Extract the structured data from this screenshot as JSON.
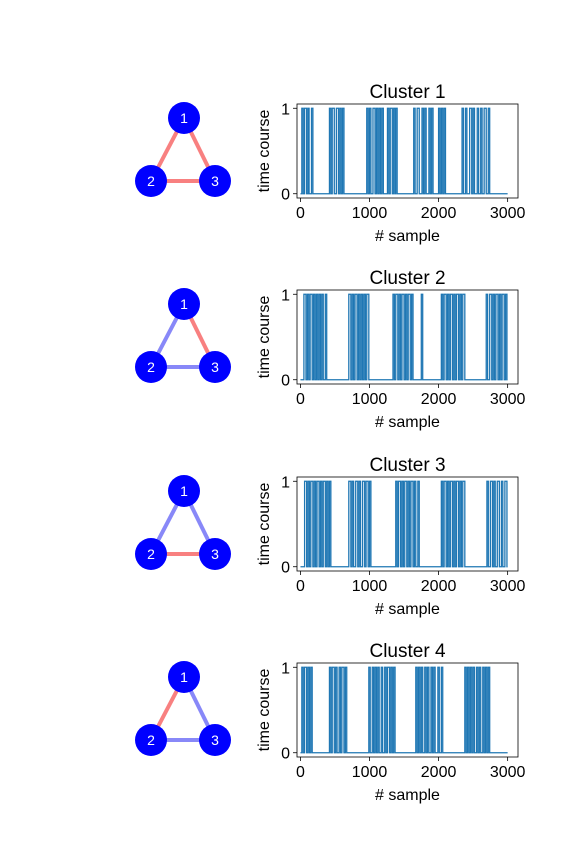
{
  "colors": {
    "node": "#0000ff",
    "node_label": "#ffffff",
    "edge_positive": "#f88080",
    "edge_negative": "#8888f8",
    "line": "#1f77b4",
    "axes": "#000000"
  },
  "chart_data": [
    {
      "type": "line",
      "title": "Cluster 1",
      "xlabel": "# sample",
      "ylabel": "time course",
      "xlim": [
        -50,
        3150
      ],
      "ylim": [
        -0.05,
        1.05
      ],
      "xticks": [
        0,
        1000,
        2000,
        3000
      ],
      "xtick_labels": [
        "0",
        "1000",
        "2000",
        "3000"
      ],
      "yticks": [
        0,
        1
      ],
      "ytick_labels": [
        "0",
        "1"
      ],
      "graph": {
        "nodes": [
          "1",
          "2",
          "3"
        ],
        "edges": [
          {
            "source": "1",
            "target": "2",
            "sign": "positive"
          },
          {
            "source": "1",
            "target": "3",
            "sign": "positive"
          },
          {
            "source": "2",
            "target": "3",
            "sign": "positive"
          }
        ]
      },
      "active_intervals": [
        [
          20,
          40
        ],
        [
          60,
          90
        ],
        [
          110,
          125
        ],
        [
          160,
          180
        ],
        [
          420,
          440
        ],
        [
          460,
          490
        ],
        [
          520,
          550
        ],
        [
          570,
          590
        ],
        [
          610,
          630
        ],
        [
          960,
          980
        ],
        [
          1000,
          1020
        ],
        [
          1050,
          1080
        ],
        [
          1100,
          1120
        ],
        [
          1140,
          1160
        ],
        [
          1180,
          1200
        ],
        [
          1260,
          1280
        ],
        [
          1300,
          1330
        ],
        [
          1350,
          1370
        ],
        [
          1380,
          1400
        ],
        [
          1640,
          1660
        ],
        [
          1690,
          1720
        ],
        [
          1760,
          1780
        ],
        [
          1800,
          1820
        ],
        [
          1860,
          1880
        ],
        [
          1900,
          1920
        ],
        [
          2000,
          2020
        ],
        [
          2040,
          2060
        ],
        [
          2080,
          2100
        ],
        [
          2340,
          2360
        ],
        [
          2390,
          2410
        ],
        [
          2450,
          2480
        ],
        [
          2500,
          2520
        ],
        [
          2560,
          2580
        ],
        [
          2610,
          2630
        ],
        [
          2660,
          2690
        ],
        [
          2720,
          2740
        ]
      ]
    },
    {
      "type": "line",
      "title": "Cluster 2",
      "xlabel": "# sample",
      "ylabel": "time course",
      "xlim": [
        -50,
        3150
      ],
      "ylim": [
        -0.05,
        1.05
      ],
      "xticks": [
        0,
        1000,
        2000,
        3000
      ],
      "xtick_labels": [
        "0",
        "1000",
        "2000",
        "3000"
      ],
      "yticks": [
        0,
        1
      ],
      "ytick_labels": [
        "0",
        "1"
      ],
      "graph": {
        "nodes": [
          "1",
          "2",
          "3"
        ],
        "edges": [
          {
            "source": "1",
            "target": "2",
            "sign": "negative"
          },
          {
            "source": "1",
            "target": "3",
            "sign": "positive"
          },
          {
            "source": "2",
            "target": "3",
            "sign": "negative"
          }
        ]
      },
      "active_intervals": [
        [
          50,
          80
        ],
        [
          100,
          120
        ],
        [
          140,
          170
        ],
        [
          190,
          210
        ],
        [
          230,
          250
        ],
        [
          270,
          290
        ],
        [
          310,
          330
        ],
        [
          360,
          380
        ],
        [
          700,
          730
        ],
        [
          750,
          770
        ],
        [
          790,
          820
        ],
        [
          840,
          860
        ],
        [
          880,
          900
        ],
        [
          920,
          940
        ],
        [
          960,
          990
        ],
        [
          1340,
          1360
        ],
        [
          1380,
          1410
        ],
        [
          1430,
          1450
        ],
        [
          1470,
          1500
        ],
        [
          1520,
          1540
        ],
        [
          1560,
          1590
        ],
        [
          1610,
          1630
        ],
        [
          1750,
          1770
        ],
        [
          2040,
          2060
        ],
        [
          2080,
          2110
        ],
        [
          2130,
          2150
        ],
        [
          2170,
          2200
        ],
        [
          2220,
          2240
        ],
        [
          2260,
          2290
        ],
        [
          2310,
          2330
        ],
        [
          2350,
          2380
        ],
        [
          2690,
          2710
        ],
        [
          2740,
          2770
        ],
        [
          2790,
          2810
        ],
        [
          2830,
          2860
        ],
        [
          2880,
          2900
        ],
        [
          2920,
          2950
        ],
        [
          2970,
          2990
        ]
      ]
    },
    {
      "type": "line",
      "title": "Cluster 3",
      "xlabel": "# sample",
      "ylabel": "time course",
      "xlim": [
        -50,
        3150
      ],
      "ylim": [
        -0.05,
        1.05
      ],
      "xticks": [
        0,
        1000,
        2000,
        3000
      ],
      "xtick_labels": [
        "0",
        "1000",
        "2000",
        "3000"
      ],
      "yticks": [
        0,
        1
      ],
      "ytick_labels": [
        "0",
        "1"
      ],
      "graph": {
        "nodes": [
          "1",
          "2",
          "3"
        ],
        "edges": [
          {
            "source": "1",
            "target": "2",
            "sign": "negative"
          },
          {
            "source": "1",
            "target": "3",
            "sign": "negative"
          },
          {
            "source": "2",
            "target": "3",
            "sign": "positive"
          }
        ]
      },
      "active_intervals": [
        [
          60,
          90
        ],
        [
          110,
          130
        ],
        [
          150,
          180
        ],
        [
          200,
          220
        ],
        [
          240,
          270
        ],
        [
          290,
          310
        ],
        [
          330,
          360
        ],
        [
          380,
          400
        ],
        [
          420,
          440
        ],
        [
          700,
          730
        ],
        [
          750,
          770
        ],
        [
          800,
          830
        ],
        [
          850,
          870
        ],
        [
          900,
          930
        ],
        [
          950,
          980
        ],
        [
          1000,
          1020
        ],
        [
          1380,
          1400
        ],
        [
          1420,
          1450
        ],
        [
          1470,
          1490
        ],
        [
          1510,
          1540
        ],
        [
          1560,
          1580
        ],
        [
          1600,
          1630
        ],
        [
          1650,
          1670
        ],
        [
          1700,
          1720
        ],
        [
          2040,
          2060
        ],
        [
          2080,
          2110
        ],
        [
          2130,
          2150
        ],
        [
          2170,
          2200
        ],
        [
          2220,
          2240
        ],
        [
          2260,
          2290
        ],
        [
          2310,
          2330
        ],
        [
          2350,
          2380
        ],
        [
          2700,
          2720
        ],
        [
          2750,
          2780
        ],
        [
          2800,
          2820
        ],
        [
          2850,
          2880
        ],
        [
          2910,
          2930
        ],
        [
          2960,
          2990
        ]
      ]
    },
    {
      "type": "line",
      "title": "Cluster 4",
      "xlabel": "# sample",
      "ylabel": "time course",
      "xlim": [
        -50,
        3150
      ],
      "ylim": [
        -0.05,
        1.05
      ],
      "xticks": [
        0,
        1000,
        2000,
        3000
      ],
      "xtick_labels": [
        "0",
        "1000",
        "2000",
        "3000"
      ],
      "yticks": [
        0,
        1
      ],
      "ytick_labels": [
        "0",
        "1"
      ],
      "graph": {
        "nodes": [
          "1",
          "2",
          "3"
        ],
        "edges": [
          {
            "source": "1",
            "target": "2",
            "sign": "positive"
          },
          {
            "source": "1",
            "target": "3",
            "sign": "negative"
          },
          {
            "source": "2",
            "target": "3",
            "sign": "negative"
          }
        ]
      },
      "active_intervals": [
        [
          20,
          40
        ],
        [
          60,
          90
        ],
        [
          110,
          130
        ],
        [
          150,
          170
        ],
        [
          420,
          440
        ],
        [
          460,
          490
        ],
        [
          510,
          530
        ],
        [
          560,
          580
        ],
        [
          600,
          630
        ],
        [
          650,
          670
        ],
        [
          990,
          1010
        ],
        [
          1040,
          1060
        ],
        [
          1080,
          1100
        ],
        [
          1120,
          1140
        ],
        [
          1170,
          1190
        ],
        [
          1220,
          1240
        ],
        [
          1260,
          1290
        ],
        [
          1310,
          1330
        ],
        [
          1350,
          1370
        ],
        [
          1670,
          1690
        ],
        [
          1710,
          1730
        ],
        [
          1750,
          1770
        ],
        [
          1800,
          1820
        ],
        [
          1840,
          1860
        ],
        [
          1890,
          1910
        ],
        [
          1930,
          1950
        ],
        [
          1990,
          2010
        ],
        [
          2040,
          2060
        ],
        [
          2380,
          2400
        ],
        [
          2420,
          2440
        ],
        [
          2460,
          2480
        ],
        [
          2500,
          2520
        ],
        [
          2550,
          2570
        ],
        [
          2590,
          2610
        ],
        [
          2640,
          2660
        ],
        [
          2680,
          2700
        ],
        [
          2720,
          2740
        ]
      ]
    }
  ]
}
